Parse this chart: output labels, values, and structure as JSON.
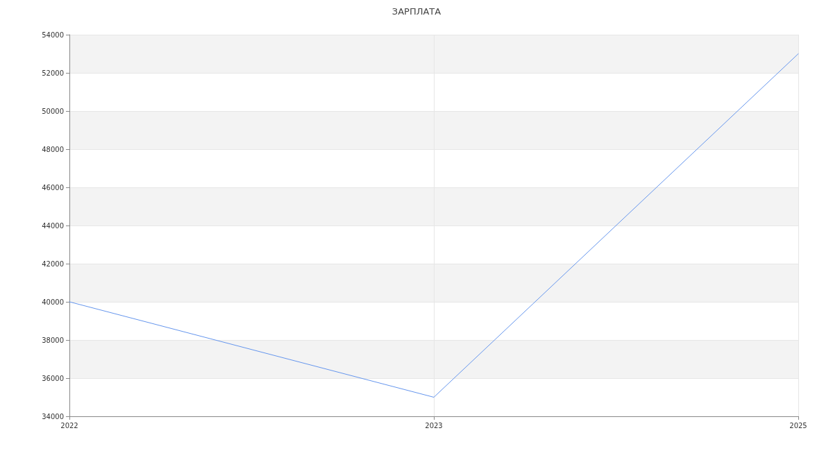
{
  "chart_data": {
    "type": "line",
    "title": "ЗАРПЛАТА",
    "categories": [
      "2022",
      "2023",
      "2025"
    ],
    "series": [
      {
        "color": "#6495ed",
        "values": [
          40000,
          35000,
          53000
        ]
      }
    ],
    "ylim": [
      34000,
      54000
    ],
    "yticks": [
      34000,
      36000,
      38000,
      40000,
      42000,
      44000,
      46000,
      48000,
      50000,
      52000,
      54000
    ],
    "grid": true,
    "marker": "none",
    "line_style": "solid"
  }
}
